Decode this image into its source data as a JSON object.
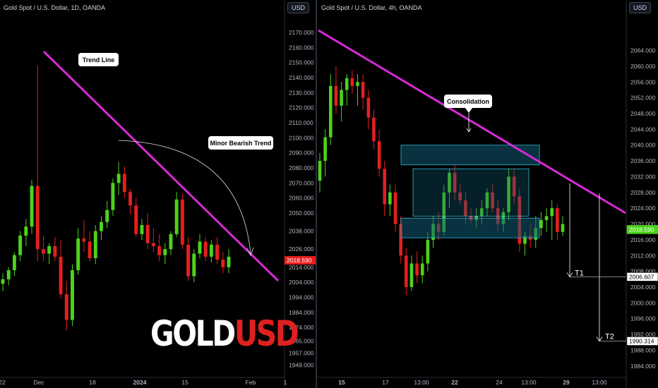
{
  "colors": {
    "up": "#4cd31b",
    "down": "#e61e1e",
    "trend": "#d62ad6",
    "box_fill": "#0f5b73",
    "box_stroke": "#36b6d8",
    "price_tag_right": "#4cd31b",
    "price_tag_left": "#e61e1e"
  },
  "left_panel": {
    "title": "Gold Spot / U.S. Dollar, 1D, OANDA",
    "currency_button": "USD",
    "logo_part1": "GOLD",
    "logo_part2": "USD",
    "annotations": {
      "trend_line": "Trend Line",
      "minor_bearish": "Minor Bearish Trend"
    },
    "price_tag": "2018.590"
  },
  "right_panel": {
    "title": "Gold Spot / U.S. Dollar, 4h, OANDA",
    "currency_button": "USD",
    "annotations": {
      "consolidation": "Consolidation",
      "t1": "T1",
      "t2": "T2"
    },
    "price_tag": "2018.590",
    "t1_tag": "2006.607",
    "t2_tag": "1990.314"
  },
  "chart_data": [
    {
      "type": "candlestick",
      "title": "Gold Spot / U.S. Dollar, 1D, OANDA",
      "ylim": [
        1945,
        2177
      ],
      "y_ticks": [
        "2170.000",
        "2160.000",
        "2150.000",
        "2140.000",
        "2130.000",
        "2120.000",
        "2110.000",
        "2100.000",
        "2090.000",
        "2080.000",
        "2070.000",
        "2060.000",
        "2050.000",
        "2038.000",
        "2026.000",
        "2014.000",
        "2004.000",
        "1994.000",
        "1984.000",
        "1974.000",
        "1965.000",
        "1957.000",
        "1949.000"
      ],
      "x_ticks": [
        "22",
        "Dec",
        "18",
        "2024",
        "15",
        "Feb",
        "1"
      ],
      "last_price": 2018.59,
      "candles": [
        {
          "o": 2003,
          "h": 2010,
          "l": 1998,
          "c": 2006
        },
        {
          "o": 2006,
          "h": 2014,
          "l": 2002,
          "c": 2012
        },
        {
          "o": 2012,
          "h": 2024,
          "l": 2008,
          "c": 2022
        },
        {
          "o": 2022,
          "h": 2038,
          "l": 2018,
          "c": 2035
        },
        {
          "o": 2035,
          "h": 2046,
          "l": 2028,
          "c": 2041
        },
        {
          "o": 2041,
          "h": 2072,
          "l": 2036,
          "c": 2068
        },
        {
          "o": 2068,
          "h": 2148,
          "l": 2018,
          "c": 2026
        },
        {
          "o": 2026,
          "h": 2035,
          "l": 2018,
          "c": 2023
        },
        {
          "o": 2023,
          "h": 2030,
          "l": 2016,
          "c": 2028
        },
        {
          "o": 2028,
          "h": 2034,
          "l": 2018,
          "c": 2021
        },
        {
          "o": 2021,
          "h": 2032,
          "l": 1993,
          "c": 1996
        },
        {
          "o": 1996,
          "h": 2005,
          "l": 1972,
          "c": 1979
        },
        {
          "o": 1979,
          "h": 2016,
          "l": 1975,
          "c": 2012
        },
        {
          "o": 2012,
          "h": 2040,
          "l": 2009,
          "c": 2033
        },
        {
          "o": 2033,
          "h": 2045,
          "l": 2024,
          "c": 2031
        },
        {
          "o": 2031,
          "h": 2038,
          "l": 2018,
          "c": 2020
        },
        {
          "o": 2020,
          "h": 2042,
          "l": 2016,
          "c": 2038
        },
        {
          "o": 2038,
          "h": 2048,
          "l": 2032,
          "c": 2044
        },
        {
          "o": 2044,
          "h": 2058,
          "l": 2040,
          "c": 2052
        },
        {
          "o": 2052,
          "h": 2073,
          "l": 2048,
          "c": 2070
        },
        {
          "o": 2070,
          "h": 2084,
          "l": 2062,
          "c": 2076
        },
        {
          "o": 2076,
          "h": 2081,
          "l": 2060,
          "c": 2064
        },
        {
          "o": 2064,
          "h": 2066,
          "l": 2049,
          "c": 2055
        },
        {
          "o": 2055,
          "h": 2060,
          "l": 2034,
          "c": 2036
        },
        {
          "o": 2036,
          "h": 2046,
          "l": 2032,
          "c": 2042
        },
        {
          "o": 2042,
          "h": 2050,
          "l": 2026,
          "c": 2030
        },
        {
          "o": 2030,
          "h": 2040,
          "l": 2024,
          "c": 2028
        },
        {
          "o": 2028,
          "h": 2036,
          "l": 2018,
          "c": 2022
        },
        {
          "o": 2022,
          "h": 2030,
          "l": 2016,
          "c": 2026
        },
        {
          "o": 2026,
          "h": 2038,
          "l": 2022,
          "c": 2036
        },
        {
          "o": 2036,
          "h": 2064,
          "l": 2034,
          "c": 2059
        },
        {
          "o": 2059,
          "h": 2063,
          "l": 2026,
          "c": 2029
        },
        {
          "o": 2029,
          "h": 2034,
          "l": 2005,
          "c": 2008
        },
        {
          "o": 2008,
          "h": 2026,
          "l": 2004,
          "c": 2023
        },
        {
          "o": 2023,
          "h": 2036,
          "l": 2020,
          "c": 2031
        },
        {
          "o": 2031,
          "h": 2034,
          "l": 2018,
          "c": 2021
        },
        {
          "o": 2021,
          "h": 2032,
          "l": 2017,
          "c": 2029
        },
        {
          "o": 2029,
          "h": 2034,
          "l": 2016,
          "c": 2019
        },
        {
          "o": 2019,
          "h": 2024,
          "l": 2010,
          "c": 2014
        },
        {
          "o": 2014,
          "h": 2026,
          "l": 2010,
          "c": 2021
        }
      ]
    },
    {
      "type": "candlestick",
      "title": "Gold Spot / U.S. Dollar, 4h, OANDA",
      "ylim": [
        1982,
        2070
      ],
      "y_ticks": [
        "2064.000",
        "2060.000",
        "2056.000",
        "2052.000",
        "2048.000",
        "2044.000",
        "2040.000",
        "2036.000",
        "2032.000",
        "2028.000",
        "2024.000",
        "2020.000",
        "2016.000",
        "2012.000",
        "2008.000",
        "2004.000",
        "2000.000",
        "1996.000",
        "1992.000",
        "1988.000",
        "1984.000"
      ],
      "x_ticks": [
        "15",
        "17",
        "13:00",
        "22",
        "24",
        "13:00",
        "29",
        "13:00"
      ],
      "last_price": 2018.59,
      "targets": [
        {
          "label": "T1",
          "value": 2006.607
        },
        {
          "label": "T2",
          "value": 1990.314
        }
      ],
      "candles": [
        {
          "o": 2031,
          "h": 2038,
          "l": 2028,
          "c": 2036
        },
        {
          "o": 2036,
          "h": 2044,
          "l": 2032,
          "c": 2042
        },
        {
          "o": 2042,
          "h": 2058,
          "l": 2040,
          "c": 2055
        },
        {
          "o": 2055,
          "h": 2060,
          "l": 2048,
          "c": 2050
        },
        {
          "o": 2050,
          "h": 2056,
          "l": 2046,
          "c": 2054
        },
        {
          "o": 2054,
          "h": 2058,
          "l": 2050,
          "c": 2057
        },
        {
          "o": 2057,
          "h": 2059,
          "l": 2053,
          "c": 2055
        },
        {
          "o": 2055,
          "h": 2058,
          "l": 2050,
          "c": 2056
        },
        {
          "o": 2056,
          "h": 2058,
          "l": 2049,
          "c": 2052
        },
        {
          "o": 2052,
          "h": 2054,
          "l": 2044,
          "c": 2047
        },
        {
          "o": 2047,
          "h": 2049,
          "l": 2039,
          "c": 2041
        },
        {
          "o": 2041,
          "h": 2044,
          "l": 2032,
          "c": 2034
        },
        {
          "o": 2034,
          "h": 2036,
          "l": 2022,
          "c": 2025
        },
        {
          "o": 2025,
          "h": 2030,
          "l": 2022,
          "c": 2028
        },
        {
          "o": 2028,
          "h": 2030,
          "l": 2018,
          "c": 2020
        },
        {
          "o": 2020,
          "h": 2022,
          "l": 2010,
          "c": 2012
        },
        {
          "o": 2012,
          "h": 2014,
          "l": 2002,
          "c": 2004
        },
        {
          "o": 2004,
          "h": 2012,
          "l": 2003,
          "c": 2010
        },
        {
          "o": 2010,
          "h": 2013,
          "l": 2005,
          "c": 2007
        },
        {
          "o": 2007,
          "h": 2012,
          "l": 2005,
          "c": 2010
        },
        {
          "o": 2010,
          "h": 2018,
          "l": 2008,
          "c": 2016
        },
        {
          "o": 2016,
          "h": 2022,
          "l": 2014,
          "c": 2020
        },
        {
          "o": 2020,
          "h": 2023,
          "l": 2016,
          "c": 2018
        },
        {
          "o": 2018,
          "h": 2030,
          "l": 2017,
          "c": 2028
        },
        {
          "o": 2028,
          "h": 2034,
          "l": 2024,
          "c": 2033
        },
        {
          "o": 2033,
          "h": 2035,
          "l": 2026,
          "c": 2028
        },
        {
          "o": 2028,
          "h": 2030,
          "l": 2025,
          "c": 2026
        },
        {
          "o": 2026,
          "h": 2028,
          "l": 2020,
          "c": 2022
        },
        {
          "o": 2022,
          "h": 2024,
          "l": 2020,
          "c": 2021
        },
        {
          "o": 2021,
          "h": 2024,
          "l": 2019,
          "c": 2022
        },
        {
          "o": 2022,
          "h": 2026,
          "l": 2020,
          "c": 2024
        },
        {
          "o": 2024,
          "h": 2029,
          "l": 2022,
          "c": 2028
        },
        {
          "o": 2028,
          "h": 2030,
          "l": 2023,
          "c": 2024
        },
        {
          "o": 2024,
          "h": 2026,
          "l": 2018,
          "c": 2020
        },
        {
          "o": 2020,
          "h": 2024,
          "l": 2018,
          "c": 2023
        },
        {
          "o": 2023,
          "h": 2034,
          "l": 2021,
          "c": 2032
        },
        {
          "o": 2032,
          "h": 2034,
          "l": 2025,
          "c": 2027
        },
        {
          "o": 2027,
          "h": 2029,
          "l": 2013,
          "c": 2015
        },
        {
          "o": 2015,
          "h": 2018,
          "l": 2012,
          "c": 2017
        },
        {
          "o": 2017,
          "h": 2020,
          "l": 2014,
          "c": 2016
        },
        {
          "o": 2016,
          "h": 2022,
          "l": 2014,
          "c": 2019
        },
        {
          "o": 2019,
          "h": 2023,
          "l": 2017,
          "c": 2021
        },
        {
          "o": 2021,
          "h": 2024,
          "l": 2018,
          "c": 2022
        },
        {
          "o": 2022,
          "h": 2026,
          "l": 2016,
          "c": 2024
        },
        {
          "o": 2024,
          "h": 2025,
          "l": 2016,
          "c": 2018
        },
        {
          "o": 2018,
          "h": 2022,
          "l": 2017,
          "c": 2020
        }
      ]
    }
  ]
}
